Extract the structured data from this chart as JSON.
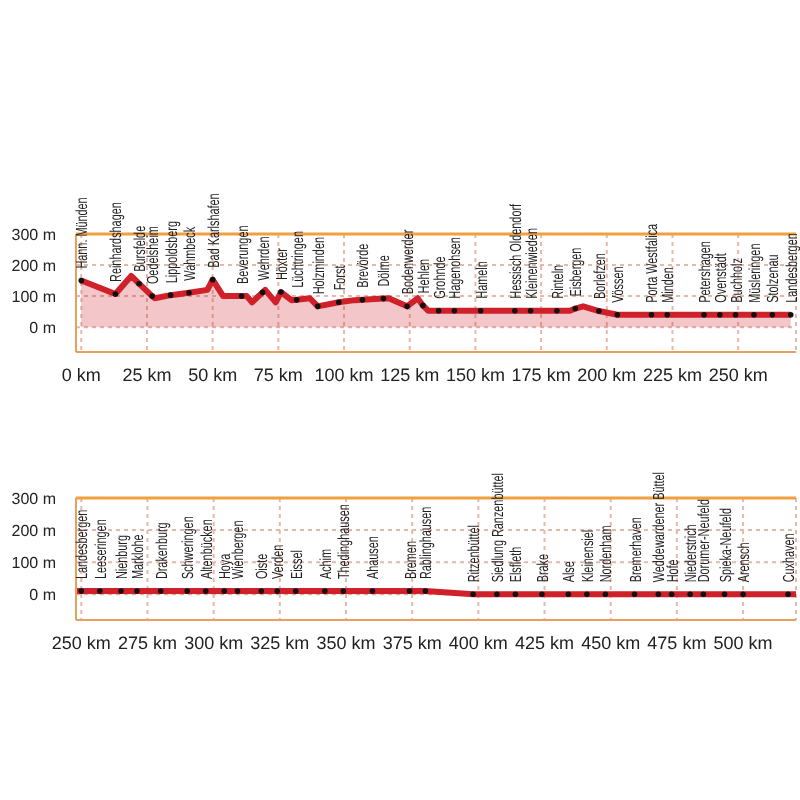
{
  "chart_data": [
    {
      "type": "area",
      "color": "#d0202a",
      "x": [
        0,
        13,
        19,
        22,
        27,
        28,
        34,
        41,
        48,
        50,
        54,
        61,
        63,
        65,
        69,
        70,
        74,
        76,
        80,
        82,
        87,
        90,
        98,
        104,
        107,
        115,
        117,
        124,
        128,
        130,
        132,
        136,
        142,
        152,
        165,
        171,
        181,
        186,
        188,
        191,
        197,
        204,
        217,
        223,
        237,
        243,
        249,
        256,
        263,
        270
      ],
      "values": [
        150,
        107,
        165,
        140,
        100,
        93,
        103,
        111,
        120,
        153,
        100,
        100,
        100,
        80,
        112,
        120,
        80,
        113,
        87,
        88,
        93,
        67,
        80,
        87,
        88,
        92,
        93,
        67,
        93,
        70,
        53,
        53,
        53,
        53,
        53,
        53,
        53,
        53,
        60,
        67,
        52,
        40,
        40,
        40,
        40,
        40,
        40,
        40,
        40,
        40
      ],
      "xlim": [
        -2,
        272
      ],
      "xticks": [
        {
          "value": 0,
          "label": "0 km"
        },
        {
          "value": 25,
          "label": "25 km"
        },
        {
          "value": 50,
          "label": "50 km"
        },
        {
          "value": 75,
          "label": "75 km"
        },
        {
          "value": 100,
          "label": "100 km"
        },
        {
          "value": 125,
          "label": "125 km"
        },
        {
          "value": 150,
          "label": "150 km"
        },
        {
          "value": 175,
          "label": "175 km"
        },
        {
          "value": 200,
          "label": "200 km"
        },
        {
          "value": 225,
          "label": "225 km"
        },
        {
          "value": 250,
          "label": "250 km"
        }
      ],
      "ylim": [
        -80,
        300
      ],
      "yticks": [
        {
          "value": 0,
          "label": "0 m"
        },
        {
          "value": 100,
          "label": "100 m"
        },
        {
          "value": 200,
          "label": "200 m"
        },
        {
          "value": 300,
          "label": "300 m"
        }
      ],
      "grid": true,
      "ref_lines": [
        {
          "axis": "y",
          "value": 300,
          "color": "#f0a040"
        }
      ],
      "annotations": [
        {
          "text": "Hann. Münden",
          "x": 0,
          "y": 150
        },
        {
          "text": "Reinhardshagen",
          "x": 13,
          "y": 107
        },
        {
          "text": "Bursfelde",
          "x": 22,
          "y": 140
        },
        {
          "text": "Oedelsheim",
          "x": 27,
          "y": 100
        },
        {
          "text": "Lippoldsberg",
          "x": 34,
          "y": 103
        },
        {
          "text": "Wahmbeck",
          "x": 41,
          "y": 111
        },
        {
          "text": "Bad Karlshafen",
          "x": 50,
          "y": 153
        },
        {
          "text": "Beverungen",
          "x": 61,
          "y": 100
        },
        {
          "text": "Wehrden",
          "x": 69,
          "y": 112
        },
        {
          "text": "Höxter",
          "x": 76,
          "y": 113
        },
        {
          "text": "Lüchtringen",
          "x": 82,
          "y": 88
        },
        {
          "text": "Holzminden",
          "x": 90,
          "y": 67
        },
        {
          "text": "Forst",
          "x": 98,
          "y": 80
        },
        {
          "text": "Brevörde",
          "x": 107,
          "y": 88
        },
        {
          "text": "Dölme",
          "x": 115,
          "y": 92
        },
        {
          "text": "Bodenwerder",
          "x": 124,
          "y": 67
        },
        {
          "text": "Hehlen",
          "x": 130,
          "y": 70
        },
        {
          "text": "Grohnde",
          "x": 136,
          "y": 53
        },
        {
          "text": "Hagenohsen",
          "x": 142,
          "y": 53
        },
        {
          "text": "Hameln",
          "x": 152,
          "y": 53
        },
        {
          "text": "Hessisch Oldendorf",
          "x": 165,
          "y": 53
        },
        {
          "text": "Kleinenwieden",
          "x": 171,
          "y": 53
        },
        {
          "text": "Rinteln",
          "x": 181,
          "y": 53
        },
        {
          "text": "Eisbergen",
          "x": 188,
          "y": 60
        },
        {
          "text": "Borlefzen",
          "x": 197,
          "y": 52
        },
        {
          "text": "Vössen",
          "x": 204,
          "y": 40
        },
        {
          "text": "Porta Westfalica",
          "x": 217,
          "y": 40
        },
        {
          "text": "Minden",
          "x": 223,
          "y": 40
        },
        {
          "text": "Petershagen",
          "x": 237,
          "y": 40
        },
        {
          "text": "Ovenstädt",
          "x": 243,
          "y": 40
        },
        {
          "text": "Buchholz",
          "x": 249,
          "y": 40
        },
        {
          "text": "Müsleringen",
          "x": 256,
          "y": 40
        },
        {
          "text": "Stolzenau",
          "x": 263,
          "y": 40
        },
        {
          "text": "Landesbergen",
          "x": 270,
          "y": 40
        }
      ]
    },
    {
      "type": "area",
      "color": "#d0202a",
      "x": [
        248,
        250,
        257,
        265,
        271,
        280,
        290,
        297,
        304,
        309,
        318,
        324,
        331,
        342,
        349,
        360,
        374,
        380,
        398,
        407,
        414,
        424,
        434,
        441,
        448,
        459,
        468,
        473,
        480,
        485,
        493,
        500,
        517,
        520
      ],
      "values": [
        10,
        10,
        10,
        10,
        10,
        10,
        10,
        10,
        10,
        10,
        10,
        10,
        10,
        10,
        10,
        10,
        10,
        10,
        0,
        0,
        0,
        0,
        0,
        0,
        0,
        0,
        0,
        0,
        0,
        0,
        0,
        0,
        0,
        0
      ],
      "xlim": [
        248,
        520
      ],
      "xticks": [
        {
          "value": 250,
          "label": "250 km"
        },
        {
          "value": 275,
          "label": "275 km"
        },
        {
          "value": 300,
          "label": "300 km"
        },
        {
          "value": 325,
          "label": "325 km"
        },
        {
          "value": 350,
          "label": "350 km"
        },
        {
          "value": 375,
          "label": "375 km"
        },
        {
          "value": 400,
          "label": "400 km"
        },
        {
          "value": 425,
          "label": "425 km"
        },
        {
          "value": 450,
          "label": "450 km"
        },
        {
          "value": 475,
          "label": "475 km"
        },
        {
          "value": 500,
          "label": "500 km"
        }
      ],
      "ylim": [
        -80,
        300
      ],
      "yticks": [
        {
          "value": 0,
          "label": "0 m"
        },
        {
          "value": 100,
          "label": "100 m"
        },
        {
          "value": 200,
          "label": "200 m"
        },
        {
          "value": 300,
          "label": "300 m"
        }
      ],
      "grid": true,
      "ref_lines": [
        {
          "axis": "y",
          "value": 300,
          "color": "#f0a040"
        }
      ],
      "annotations": [
        {
          "text": "Landesbergen",
          "x": 250,
          "y": 10
        },
        {
          "text": "Leeseringen",
          "x": 257,
          "y": 10
        },
        {
          "text": "Nienburg",
          "x": 265,
          "y": 10
        },
        {
          "text": "Marklohe",
          "x": 271,
          "y": 10
        },
        {
          "text": "Drakenburg",
          "x": 280,
          "y": 10
        },
        {
          "text": "Schweringen",
          "x": 290,
          "y": 10
        },
        {
          "text": "Altenbücken",
          "x": 297,
          "y": 10
        },
        {
          "text": "Hoya",
          "x": 304,
          "y": 10
        },
        {
          "text": "Wienbergen",
          "x": 309,
          "y": 10
        },
        {
          "text": "Oiste",
          "x": 318,
          "y": 10
        },
        {
          "text": "Verden",
          "x": 324,
          "y": 10
        },
        {
          "text": "Eissel",
          "x": 331,
          "y": 10
        },
        {
          "text": "Achim",
          "x": 342,
          "y": 10
        },
        {
          "text": "Thedinghausen",
          "x": 349,
          "y": 10
        },
        {
          "text": "Ahausen",
          "x": 360,
          "y": 10
        },
        {
          "text": "Bremen",
          "x": 374,
          "y": 10
        },
        {
          "text": "Rablinghausen",
          "x": 380,
          "y": 10
        },
        {
          "text": "Ritzenbüttel",
          "x": 398,
          "y": 0
        },
        {
          "text": "Siedlung Ranzenbüttel",
          "x": 407,
          "y": 0
        },
        {
          "text": "Elsfleth",
          "x": 414,
          "y": 0
        },
        {
          "text": "Brake",
          "x": 424,
          "y": 0
        },
        {
          "text": "Alse",
          "x": 434,
          "y": 0
        },
        {
          "text": "Kleinensiel",
          "x": 441,
          "y": 0
        },
        {
          "text": "Nordenham",
          "x": 448,
          "y": 0
        },
        {
          "text": "Bremerhaven",
          "x": 459,
          "y": 0
        },
        {
          "text": "Weddewardener Büttel",
          "x": 468,
          "y": 0
        },
        {
          "text": "Hofe",
          "x": 473,
          "y": 0
        },
        {
          "text": "Niederstrich",
          "x": 480,
          "y": 0
        },
        {
          "text": "Dorumer-Neufeld",
          "x": 485,
          "y": 0
        },
        {
          "text": "Spieka-Neufeld",
          "x": 493,
          "y": 0
        },
        {
          "text": "Arensch",
          "x": 500,
          "y": 0
        },
        {
          "text": "Cuxhaven",
          "x": 517,
          "y": 0
        }
      ]
    }
  ]
}
